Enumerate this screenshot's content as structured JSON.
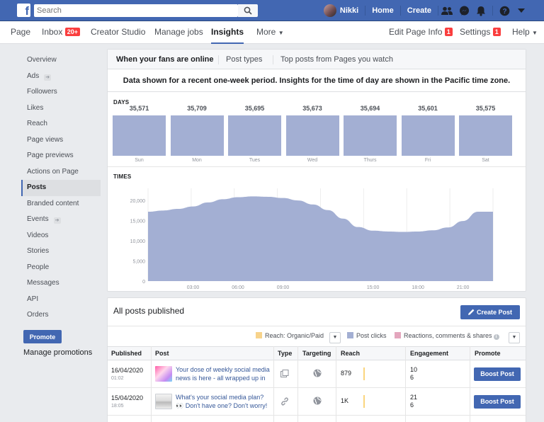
{
  "header": {
    "search_placeholder": "Search",
    "user_name": "Nikki",
    "home_label": "Home",
    "create_label": "Create"
  },
  "page_nav": {
    "page": "Page",
    "inbox": "Inbox",
    "inbox_badge": "20+",
    "creator_studio": "Creator Studio",
    "manage_jobs": "Manage jobs",
    "insights": "Insights",
    "more": "More",
    "edit_page_info": "Edit Page Info",
    "edit_badge": "1",
    "settings": "Settings",
    "settings_badge": "1",
    "help": "Help"
  },
  "sidebar": {
    "items": [
      {
        "label": "Overview"
      },
      {
        "label": "Ads"
      },
      {
        "label": "Followers"
      },
      {
        "label": "Likes"
      },
      {
        "label": "Reach"
      },
      {
        "label": "Page views"
      },
      {
        "label": "Page previews"
      },
      {
        "label": "Actions on Page"
      },
      {
        "label": "Posts"
      },
      {
        "label": "Branded content"
      },
      {
        "label": "Events"
      },
      {
        "label": "Videos"
      },
      {
        "label": "Stories"
      },
      {
        "label": "People"
      },
      {
        "label": "Messages"
      },
      {
        "label": "API"
      },
      {
        "label": "Orders"
      }
    ],
    "promote_label": "Promote",
    "manage_promotions": "Manage promotions"
  },
  "insights": {
    "tabs": [
      "When your fans are online",
      "Post types",
      "Top posts from Pages you watch"
    ],
    "note": "Data shown for a recent one-week period. Insights for the time of day are shown in the Pacific time zone.",
    "days_label": "DAYS",
    "times_label": "TIMES"
  },
  "chart_data": [
    {
      "type": "bar",
      "title": "DAYS",
      "categories": [
        "Sun",
        "Mon",
        "Tues",
        "Wed",
        "Thurs",
        "Fri",
        "Sat"
      ],
      "values": [
        35571,
        35709,
        35695,
        35673,
        35694,
        35601,
        35575
      ],
      "value_labels": [
        "35,571",
        "35,709",
        "35,695",
        "35,673",
        "35,694",
        "35,601",
        "35,575"
      ],
      "color": "#a3afd3"
    },
    {
      "type": "area",
      "title": "TIMES",
      "x": [
        0,
        1,
        2,
        3,
        4,
        5,
        6,
        7,
        8,
        9,
        10,
        11,
        12,
        13,
        14,
        15,
        16,
        17,
        18,
        19,
        20,
        21,
        22,
        23
      ],
      "values": [
        17200,
        17500,
        17900,
        18500,
        19500,
        20300,
        20800,
        21000,
        20900,
        20600,
        20000,
        19000,
        17600,
        15500,
        13400,
        12500,
        12300,
        12200,
        12300,
        12600,
        13300,
        14900,
        17200,
        17200
      ],
      "x_tick_labels": [
        "03:00",
        "06:00",
        "09:00",
        "15:00",
        "18:00",
        "21:00"
      ],
      "y_tick_labels": [
        "20,000",
        "15,000",
        "10,000",
        "5,000",
        "0"
      ],
      "ylim": [
        0,
        23000
      ],
      "color": "#a3afd3"
    }
  ],
  "posts": {
    "title": "All posts published",
    "create_post": "Create Post",
    "legend": [
      {
        "label": "Reach: Organic/Paid",
        "color": "#f7d38b"
      },
      {
        "label": "Post clicks",
        "color": "#a3afd3"
      },
      {
        "label": "Reactions, comments & shares",
        "color": "#e3a6bd"
      }
    ],
    "columns": [
      "Published",
      "Post",
      "Type",
      "Targeting",
      "Reach",
      "Engagement",
      "Promote"
    ],
    "rows": [
      {
        "date": "16/04/2020",
        "time": "01:02",
        "text": "Your dose of weekly social media news is here - all wrapped up in",
        "reach": "879",
        "eng1": "10",
        "eng2": "6",
        "boost": "Boost Post"
      },
      {
        "date": "15/04/2020",
        "time": "18:05",
        "text": "What's your social media plan? 👀 Don't have one? Don't worry!",
        "reach": "1K",
        "eng1": "21",
        "eng2": "6",
        "boost": "Boost Post"
      }
    ]
  }
}
